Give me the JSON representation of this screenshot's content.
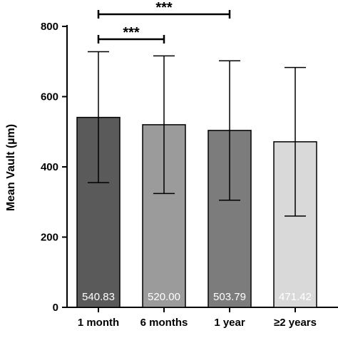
{
  "chart_data": {
    "type": "bar",
    "title": "",
    "xlabel": "",
    "ylabel": "Mean Vault (µm)",
    "ylim": [
      0,
      800
    ],
    "yticks": [
      0,
      200,
      400,
      600,
      800
    ],
    "categories": [
      "1 month",
      "6 months",
      "1 year",
      "≥2 years"
    ],
    "values": [
      540.83,
      520.0,
      503.79,
      471.42
    ],
    "value_labels": [
      "540.83",
      "520.00",
      "503.79",
      "471.42"
    ],
    "error_upper": [
      728,
      716,
      702,
      683
    ],
    "error_lower": [
      355,
      324,
      305,
      260
    ],
    "colors": [
      "#5a5a5a",
      "#9b9b9b",
      "#7c7c7c",
      "#d9d9d9"
    ],
    "grid": false,
    "significance": [
      {
        "from": 0,
        "to": 1,
        "label": "***"
      },
      {
        "from": 0,
        "to": 2,
        "label": "***"
      }
    ]
  }
}
